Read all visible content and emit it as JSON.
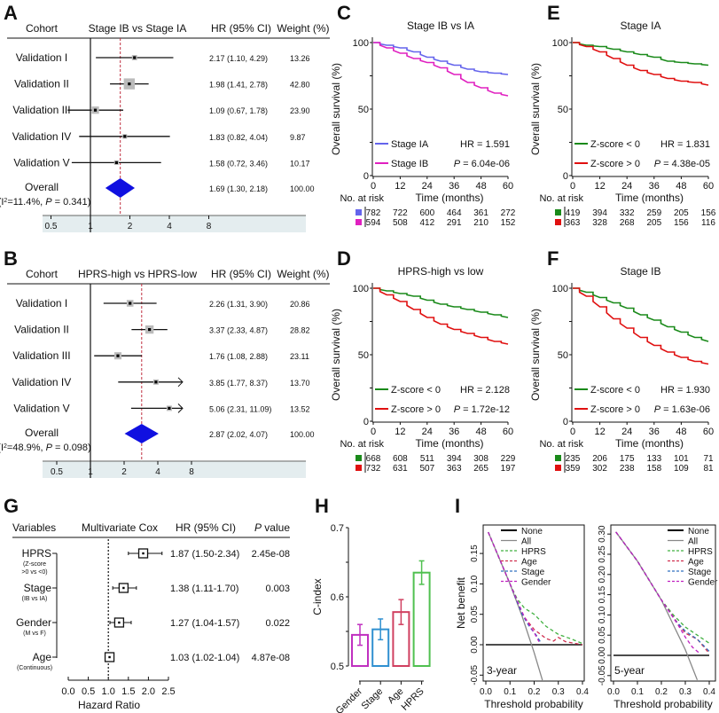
{
  "chart_data": [
    {
      "panel": "A",
      "type": "forest",
      "headers": {
        "cohort": "Cohort",
        "compare": "Stage IB vs Stage IA",
        "hr": "HR (95% CI)",
        "weight": "Weight (%)"
      },
      "rows": [
        {
          "label": "Validation I",
          "hr": 2.17,
          "lo": 1.1,
          "hi": 4.29,
          "hr_text": "2.17 (1.10, 4.29)",
          "weight": "13.26"
        },
        {
          "label": "Validation II",
          "hr": 1.98,
          "lo": 1.41,
          "hi": 2.78,
          "hr_text": "1.98 (1.41, 2.78)",
          "weight": "42.80"
        },
        {
          "label": "Validation III",
          "hr": 1.09,
          "lo": 0.67,
          "hi": 1.78,
          "hr_text": "1.09 (0.67, 1.78)",
          "weight": "23.90"
        },
        {
          "label": "Validation IV",
          "hr": 1.83,
          "lo": 0.82,
          "hi": 4.04,
          "hr_text": "1.83 (0.82, 4.04)",
          "weight": "9.87"
        },
        {
          "label": "Validation V",
          "hr": 1.58,
          "lo": 0.72,
          "hi": 3.46,
          "hr_text": "1.58 (0.72, 3.46)",
          "weight": "10.17"
        }
      ],
      "overall": {
        "label": "Overall",
        "hr": 1.69,
        "lo": 1.3,
        "hi": 2.18,
        "hr_text": "1.69 (1.30, 2.18)",
        "weight": "100.00",
        "het": {
          "a": "(I",
          "sup": "2",
          "b": "=11.4%, ",
          "p": "P",
          "c": " = 0.341)"
        }
      },
      "ticks": [
        "0.5",
        "1",
        "2",
        "4",
        "8"
      ],
      "tick_values": [
        0.5,
        1,
        2,
        4,
        8
      ]
    },
    {
      "panel": "B",
      "type": "forest",
      "headers": {
        "cohort": "Cohort",
        "compare": "HPRS-high vs HPRS-low",
        "hr": "HR (95% CI)",
        "weight": "Weight (%)"
      },
      "rows": [
        {
          "label": "Validation I",
          "hr": 2.26,
          "lo": 1.31,
          "hi": 3.9,
          "hr_text": "2.26 (1.31, 3.90)",
          "weight": "20.86"
        },
        {
          "label": "Validation II",
          "hr": 3.37,
          "lo": 2.33,
          "hi": 4.87,
          "hr_text": "3.37 (2.33, 4.87)",
          "weight": "28.82"
        },
        {
          "label": "Validation III",
          "hr": 1.76,
          "lo": 1.08,
          "hi": 2.88,
          "hr_text": "1.76 (1.08, 2.88)",
          "weight": "23.11"
        },
        {
          "label": "Validation IV",
          "hr": 3.85,
          "lo": 1.77,
          "hi": 8.37,
          "hr_text": "3.85 (1.77, 8.37)",
          "weight": "13.70"
        },
        {
          "label": "Validation V",
          "hr": 5.06,
          "lo": 2.31,
          "hi": 11.09,
          "hr_text": "5.06 (2.31, 11.09)",
          "weight": "13.52"
        }
      ],
      "overall": {
        "label": "Overall",
        "hr": 2.87,
        "lo": 2.02,
        "hi": 4.07,
        "hr_text": "2.87 (2.02, 4.07)",
        "weight": "100.00",
        "het": {
          "a": "(I",
          "sup": "2",
          "b": "=48.9%, ",
          "p": "P",
          "c": " = 0.098)"
        }
      },
      "ticks": [
        "0.5",
        "1",
        "2",
        "4",
        "8"
      ],
      "tick_values": [
        0.5,
        1,
        2,
        4,
        8
      ]
    },
    {
      "panel": "C",
      "type": "line",
      "title": "Stage IB vs IA",
      "ylabel": "Overall survival (%)",
      "xlabel": "Time (months)",
      "yticks": [
        "0",
        "50",
        "100"
      ],
      "xticks": [
        "0",
        "12",
        "24",
        "36",
        "48",
        "60"
      ],
      "x": [
        0,
        6,
        12,
        18,
        24,
        30,
        36,
        42,
        48,
        54,
        60
      ],
      "risk_label": "No. at risk",
      "hr": "HR = 1.591",
      "p_label": "P",
      "p_text": " = 6.04e-06",
      "series": [
        {
          "name": "Stage IA",
          "color": "#6464ec",
          "values": [
            100,
            98,
            96,
            93,
            89,
            86,
            83,
            80,
            78,
            77,
            76
          ],
          "risk": [
            "782",
            "722",
            "600",
            "464",
            "361",
            "272"
          ]
        },
        {
          "name": "Stage IB",
          "color": "#e020c0",
          "values": [
            100,
            96,
            92,
            88,
            85,
            81,
            76,
            70,
            66,
            62,
            60
          ],
          "risk": [
            "594",
            "508",
            "412",
            "291",
            "210",
            "152"
          ]
        }
      ]
    },
    {
      "panel": "D",
      "type": "line",
      "title": "HPRS-high vs low",
      "ylabel": "Overall survival (%)",
      "xlabel": "Time (months)",
      "yticks": [
        "0",
        "50",
        "100"
      ],
      "xticks": [
        "0",
        "12",
        "24",
        "36",
        "48",
        "60"
      ],
      "x": [
        0,
        6,
        12,
        18,
        24,
        30,
        36,
        42,
        48,
        54,
        60
      ],
      "risk_label": "No. at risk",
      "hr": "HR = 2.128",
      "p_label": "P",
      "p_text": " = 1.72e-12",
      "series": [
        {
          "name": "Z-score < 0",
          "color": "#1a8a1a",
          "values": [
            100,
            98,
            96,
            94,
            91,
            88,
            86,
            84,
            82,
            80,
            78
          ],
          "risk": [
            "668",
            "608",
            "511",
            "394",
            "308",
            "229"
          ]
        },
        {
          "name": "Z-score > 0",
          "color": "#e01010",
          "values": [
            100,
            95,
            90,
            84,
            78,
            73,
            69,
            66,
            63,
            60,
            58
          ],
          "risk": [
            "732",
            "631",
            "507",
            "363",
            "265",
            "197"
          ]
        }
      ]
    },
    {
      "panel": "E",
      "type": "line",
      "title": "Stage IA",
      "ylabel": "Overall survival (%)",
      "xlabel": "Time (months)",
      "yticks": [
        "0",
        "50",
        "100"
      ],
      "xticks": [
        "0",
        "12",
        "24",
        "36",
        "48",
        "60"
      ],
      "x": [
        0,
        6,
        12,
        18,
        24,
        30,
        36,
        42,
        48,
        54,
        60
      ],
      "risk_label": "No. at risk",
      "hr": "HR = 1.831",
      "p_label": "P",
      "p_text": " = 4.38e-05",
      "series": [
        {
          "name": "Z-score < 0",
          "color": "#1a8a1a",
          "values": [
            100,
            98,
            97,
            95,
            93,
            91,
            89,
            86,
            85,
            84,
            83
          ],
          "risk": [
            "419",
            "394",
            "332",
            "259",
            "205",
            "156"
          ]
        },
        {
          "name": "Z-score > 0",
          "color": "#e01010",
          "values": [
            100,
            97,
            93,
            88,
            83,
            79,
            76,
            73,
            71,
            70,
            68
          ],
          "risk": [
            "363",
            "328",
            "268",
            "205",
            "156",
            "116"
          ]
        }
      ]
    },
    {
      "panel": "F",
      "type": "line",
      "title": "Stage IB",
      "ylabel": "Overall survival (%)",
      "xlabel": "Time (months)",
      "yticks": [
        "0",
        "50",
        "100"
      ],
      "xticks": [
        "0",
        "12",
        "24",
        "36",
        "48",
        "60"
      ],
      "x": [
        0,
        6,
        12,
        18,
        24,
        30,
        36,
        42,
        48,
        54,
        60
      ],
      "risk_label": "No. at risk",
      "hr": "HR = 1.930",
      "p_label": "P",
      "p_text": " = 1.63e-06",
      "series": [
        {
          "name": "Z-score < 0",
          "color": "#1a8a1a",
          "values": [
            100,
            97,
            93,
            89,
            85,
            80,
            76,
            71,
            67,
            63,
            60
          ],
          "risk": [
            "235",
            "206",
            "175",
            "133",
            "101",
            "71"
          ]
        },
        {
          "name": "Z-score > 0",
          "color": "#e01010",
          "values": [
            100,
            94,
            86,
            77,
            70,
            63,
            57,
            52,
            48,
            45,
            43
          ],
          "risk": [
            "359",
            "302",
            "238",
            "158",
            "109",
            "81"
          ]
        }
      ]
    },
    {
      "panel": "G",
      "type": "forest",
      "headers": {
        "variables": "Variables",
        "model": "Multivariate Cox",
        "hr": "HR (95% CI)",
        "p_italic": "P",
        "p_rest": " value"
      },
      "rows": [
        {
          "label": "HPRS",
          "sub": [
            "(Z-score",
            ">0 vs <0)"
          ],
          "hr": 1.87,
          "lo": 1.5,
          "hi": 2.34,
          "hr_text": "1.87 (1.50-2.34)",
          "p": "2.45e-08"
        },
        {
          "label": "Stage",
          "sub": [
            "(IB vs IA)"
          ],
          "hr": 1.38,
          "lo": 1.11,
          "hi": 1.7,
          "hr_text": "1.38 (1.11-1.70)",
          "p": "0.003"
        },
        {
          "label": "Gender",
          "sub": [
            "(M vs F)"
          ],
          "hr": 1.27,
          "lo": 1.04,
          "hi": 1.57,
          "hr_text": "1.27 (1.04-1.57)",
          "p": "0.022"
        },
        {
          "label": "Age",
          "sub": [
            "(Continuous)"
          ],
          "hr": 1.03,
          "lo": 1.02,
          "hi": 1.04,
          "hr_text": "1.03 (1.02-1.04)",
          "p": "4.87e-08"
        }
      ],
      "xlabel": "Hazard Ratio",
      "xlim": [
        0,
        2.5
      ],
      "ticks": [
        "0.0",
        "0.5",
        "1.0",
        "1.5",
        "2.0",
        "2.5"
      ]
    },
    {
      "panel": "H",
      "type": "bar",
      "ylabel": "C-index",
      "ylim": [
        0.5,
        0.7
      ],
      "yticks": [
        "0.5",
        "0.6",
        "0.7"
      ],
      "categories": [
        "Gender",
        "Stage",
        "Age",
        "HPRS"
      ],
      "values": [
        0.545,
        0.553,
        0.578,
        0.635
      ],
      "errors": [
        0.015,
        0.015,
        0.018,
        0.017
      ],
      "colors": [
        "#c030c0",
        "#3090d0",
        "#d04060",
        "#50c050"
      ]
    },
    {
      "panel": "I",
      "type": "line",
      "ylabel": "Net benefit",
      "xlabel": "Threshold probability",
      "legend": [
        "None",
        "All",
        "HPRS",
        "Age",
        "Stage",
        "Gender"
      ],
      "legend_colors": [
        "#000000",
        "#888888",
        "#40b040",
        "#d03050",
        "#3070c0",
        "#c020c0"
      ],
      "xticks": [
        "0.0",
        "0.1",
        "0.2",
        "0.3",
        "0.4"
      ],
      "plots": [
        {
          "label": "3-year",
          "ylim": [
            -0.05,
            0.18
          ],
          "yticks": [
            "-0.05",
            "0.00",
            "0.05",
            "0.10",
            "0.15"
          ],
          "ytick_values": [
            -0.05,
            0,
            0.05,
            0.1,
            0.15
          ],
          "series": [
            {
              "name": "All",
              "points": [
                [
                  0.01,
                  0.185
                ],
                [
                  0.1,
                  0.1
                ],
                [
                  0.15,
                  0.047
                ],
                [
                  0.2,
                  -0.013
                ],
                [
                  0.24,
                  -0.066
                ]
              ]
            },
            {
              "name": "HPRS",
              "points": [
                [
                  0.01,
                  0.185
                ],
                [
                  0.1,
                  0.1
                ],
                [
                  0.13,
                  0.075
                ],
                [
                  0.16,
                  0.06
                ],
                [
                  0.2,
                  0.05
                ],
                [
                  0.25,
                  0.03
                ],
                [
                  0.3,
                  0.017
                ],
                [
                  0.35,
                  0.01
                ],
                [
                  0.4,
                  0.002
                ]
              ]
            },
            {
              "name": "Age",
              "points": [
                [
                  0.01,
                  0.185
                ],
                [
                  0.1,
                  0.1
                ],
                [
                  0.15,
                  0.05
                ],
                [
                  0.2,
                  0.025
                ],
                [
                  0.25,
                  0.01
                ],
                [
                  0.28,
                  0.006
                ],
                [
                  0.3,
                  0.012
                ],
                [
                  0.33,
                  0.005
                ],
                [
                  0.4,
                  0
                ]
              ]
            },
            {
              "name": "Stage",
              "points": [
                [
                  0.01,
                  0.185
                ],
                [
                  0.1,
                  0.1
                ],
                [
                  0.15,
                  0.05
                ],
                [
                  0.18,
                  0.03
                ],
                [
                  0.21,
                  0.015
                ],
                [
                  0.23,
                  0.002
                ]
              ]
            },
            {
              "name": "Gender",
              "points": [
                [
                  0.01,
                  0.185
                ],
                [
                  0.1,
                  0.1
                ],
                [
                  0.16,
                  0.045
                ],
                [
                  0.2,
                  0.02
                ],
                [
                  0.22,
                  0.005
                ]
              ]
            }
          ]
        },
        {
          "label": "5-year",
          "ylim": [
            -0.06,
            0.31
          ],
          "yticks": [
            "-0.05",
            "0.00",
            "0.05",
            "0.10",
            "0.15",
            "0.20",
            "0.25",
            "0.30"
          ],
          "ytick_values": [
            -0.05,
            0,
            0.05,
            0.1,
            0.15,
            0.2,
            0.25,
            0.3
          ],
          "series": [
            {
              "name": "All",
              "points": [
                [
                  0.01,
                  0.305
                ],
                [
                  0.1,
                  0.233
                ],
                [
                  0.2,
                  0.137
                ],
                [
                  0.3,
                  0.014
                ],
                [
                  0.35,
                  -0.061
                ]
              ]
            },
            {
              "name": "HPRS",
              "points": [
                [
                  0.01,
                  0.305
                ],
                [
                  0.1,
                  0.233
                ],
                [
                  0.2,
                  0.137
                ],
                [
                  0.25,
                  0.1
                ],
                [
                  0.3,
                  0.07
                ],
                [
                  0.35,
                  0.05
                ],
                [
                  0.4,
                  0.03
                ]
              ]
            },
            {
              "name": "Age",
              "points": [
                [
                  0.01,
                  0.305
                ],
                [
                  0.1,
                  0.233
                ],
                [
                  0.2,
                  0.137
                ],
                [
                  0.25,
                  0.095
                ],
                [
                  0.28,
                  0.07
                ],
                [
                  0.3,
                  0.055
                ],
                [
                  0.35,
                  0.04
                ],
                [
                  0.4,
                  0.005
                ]
              ]
            },
            {
              "name": "Stage",
              "points": [
                [
                  0.01,
                  0.305
                ],
                [
                  0.1,
                  0.233
                ],
                [
                  0.2,
                  0.137
                ],
                [
                  0.26,
                  0.085
                ],
                [
                  0.3,
                  0.06
                ],
                [
                  0.35,
                  0.04
                ],
                [
                  0.4,
                  0.01
                ]
              ]
            },
            {
              "name": "Gender",
              "points": [
                [
                  0.01,
                  0.305
                ],
                [
                  0.1,
                  0.233
                ],
                [
                  0.2,
                  0.137
                ],
                [
                  0.27,
                  0.075
                ],
                [
                  0.3,
                  0.045
                ],
                [
                  0.33,
                  0.02
                ],
                [
                  0.36,
                  0.005
                ]
              ]
            }
          ]
        }
      ]
    }
  ],
  "panel_labels": [
    "A",
    "B",
    "C",
    "D",
    "E",
    "F",
    "G",
    "H",
    "I"
  ]
}
